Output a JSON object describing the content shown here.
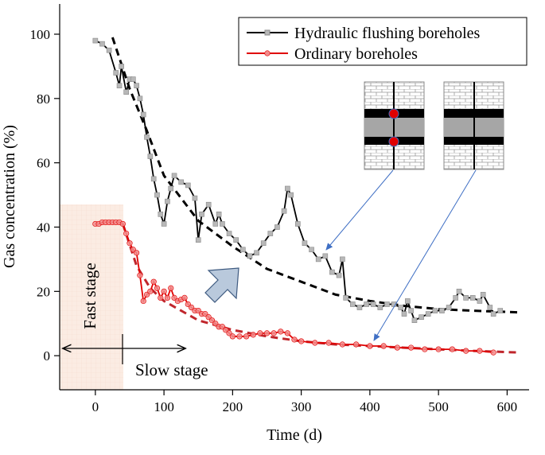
{
  "chart_data": {
    "type": "line",
    "xlabel": "Time (d)",
    "ylabel": "Gas concentration (%)",
    "xlim": [
      -52,
      632
    ],
    "ylim": [
      -10.6,
      109.4
    ],
    "xticks": [
      0,
      100,
      200,
      300,
      400,
      500,
      600
    ],
    "yticks": [
      0,
      20,
      40,
      60,
      80,
      100
    ],
    "legend": "upper right",
    "series": [
      {
        "name": "Hydraulic flushing boreholes",
        "color": "#000000",
        "marker_color": "#b8b8b8",
        "x": [
          0,
          10,
          20,
          30,
          35,
          38,
          45,
          50,
          55,
          60,
          65,
          70,
          75,
          80,
          85,
          90,
          95,
          100,
          105,
          110,
          115,
          125,
          135,
          145,
          150,
          155,
          165,
          175,
          180,
          185,
          195,
          205,
          215,
          225,
          235,
          245,
          255,
          265,
          275,
          280,
          285,
          295,
          305,
          315,
          325,
          335,
          345,
          355,
          360,
          365,
          375,
          385,
          395,
          405,
          415,
          425,
          435,
          445,
          450,
          455,
          460,
          465,
          475,
          485,
          495,
          505,
          515,
          525,
          530,
          540,
          550,
          560,
          565,
          575,
          580,
          590
        ],
        "values": [
          98,
          97,
          95,
          88,
          84,
          90,
          82,
          86,
          86,
          84,
          80,
          75,
          68,
          62,
          55,
          50,
          44,
          41,
          48,
          52,
          56,
          54,
          53,
          49,
          36,
          44,
          47,
          41,
          44,
          41,
          38,
          36,
          33,
          31,
          32,
          35,
          38,
          40,
          45,
          52,
          50,
          41,
          35,
          33,
          30,
          31,
          26,
          25,
          30,
          18,
          16,
          15,
          16,
          16,
          15,
          16,
          16,
          15,
          13,
          17,
          14,
          11,
          12,
          13,
          14,
          14,
          15,
          18,
          20,
          18,
          18,
          17,
          19,
          15,
          13,
          14
        ]
      },
      {
        "name": "Ordinary boreholes",
        "color": "#e00000",
        "marker_color": "#f28b8b",
        "x": [
          0,
          5,
          10,
          15,
          20,
          25,
          30,
          35,
          40,
          45,
          50,
          55,
          60,
          65,
          70,
          75,
          80,
          85,
          90,
          95,
          100,
          105,
          110,
          115,
          120,
          125,
          130,
          135,
          140,
          145,
          150,
          155,
          160,
          165,
          170,
          175,
          180,
          185,
          190,
          195,
          200,
          210,
          220,
          230,
          240,
          250,
          260,
          270,
          280,
          290,
          300,
          320,
          340,
          360,
          380,
          400,
          420,
          440,
          460,
          480,
          500,
          520,
          540,
          560,
          580
        ],
        "values": [
          41,
          41,
          41.5,
          41.5,
          41.5,
          41.5,
          41.5,
          41.5,
          41,
          38,
          35,
          33,
          32,
          25,
          17,
          19,
          20,
          23,
          21,
          18,
          20,
          18,
          21,
          18,
          17,
          17.5,
          18,
          16,
          15,
          14,
          14,
          13,
          13,
          12,
          11,
          10,
          9,
          9,
          8,
          7,
          6,
          6,
          6,
          6.5,
          7,
          7,
          7,
          7.5,
          7,
          5,
          4.5,
          4,
          4,
          3.5,
          3.5,
          3,
          3,
          2.5,
          2.5,
          2,
          2,
          2,
          1.5,
          1.5,
          1
        ]
      }
    ],
    "fits": [
      {
        "color": "#000000",
        "x": [
          25,
          50,
          75,
          100,
          150,
          200,
          250,
          300,
          350,
          400,
          450,
          500,
          550,
          615
        ],
        "values": [
          99,
          83,
          70,
          56,
          42,
          34,
          27,
          23,
          19,
          17,
          15.5,
          14.5,
          14,
          13.5
        ]
      },
      {
        "color": "#c0262c",
        "x": [
          40,
          60,
          80,
          100,
          150,
          200,
          250,
          300,
          350,
          400,
          450,
          500,
          550,
          615
        ],
        "values": [
          41,
          28,
          21,
          17,
          11,
          8,
          6,
          4.5,
          3.5,
          3,
          2.5,
          2,
          1.5,
          1
        ]
      }
    ],
    "annotations": [
      "Fast stage",
      "Slow stage"
    ]
  }
}
